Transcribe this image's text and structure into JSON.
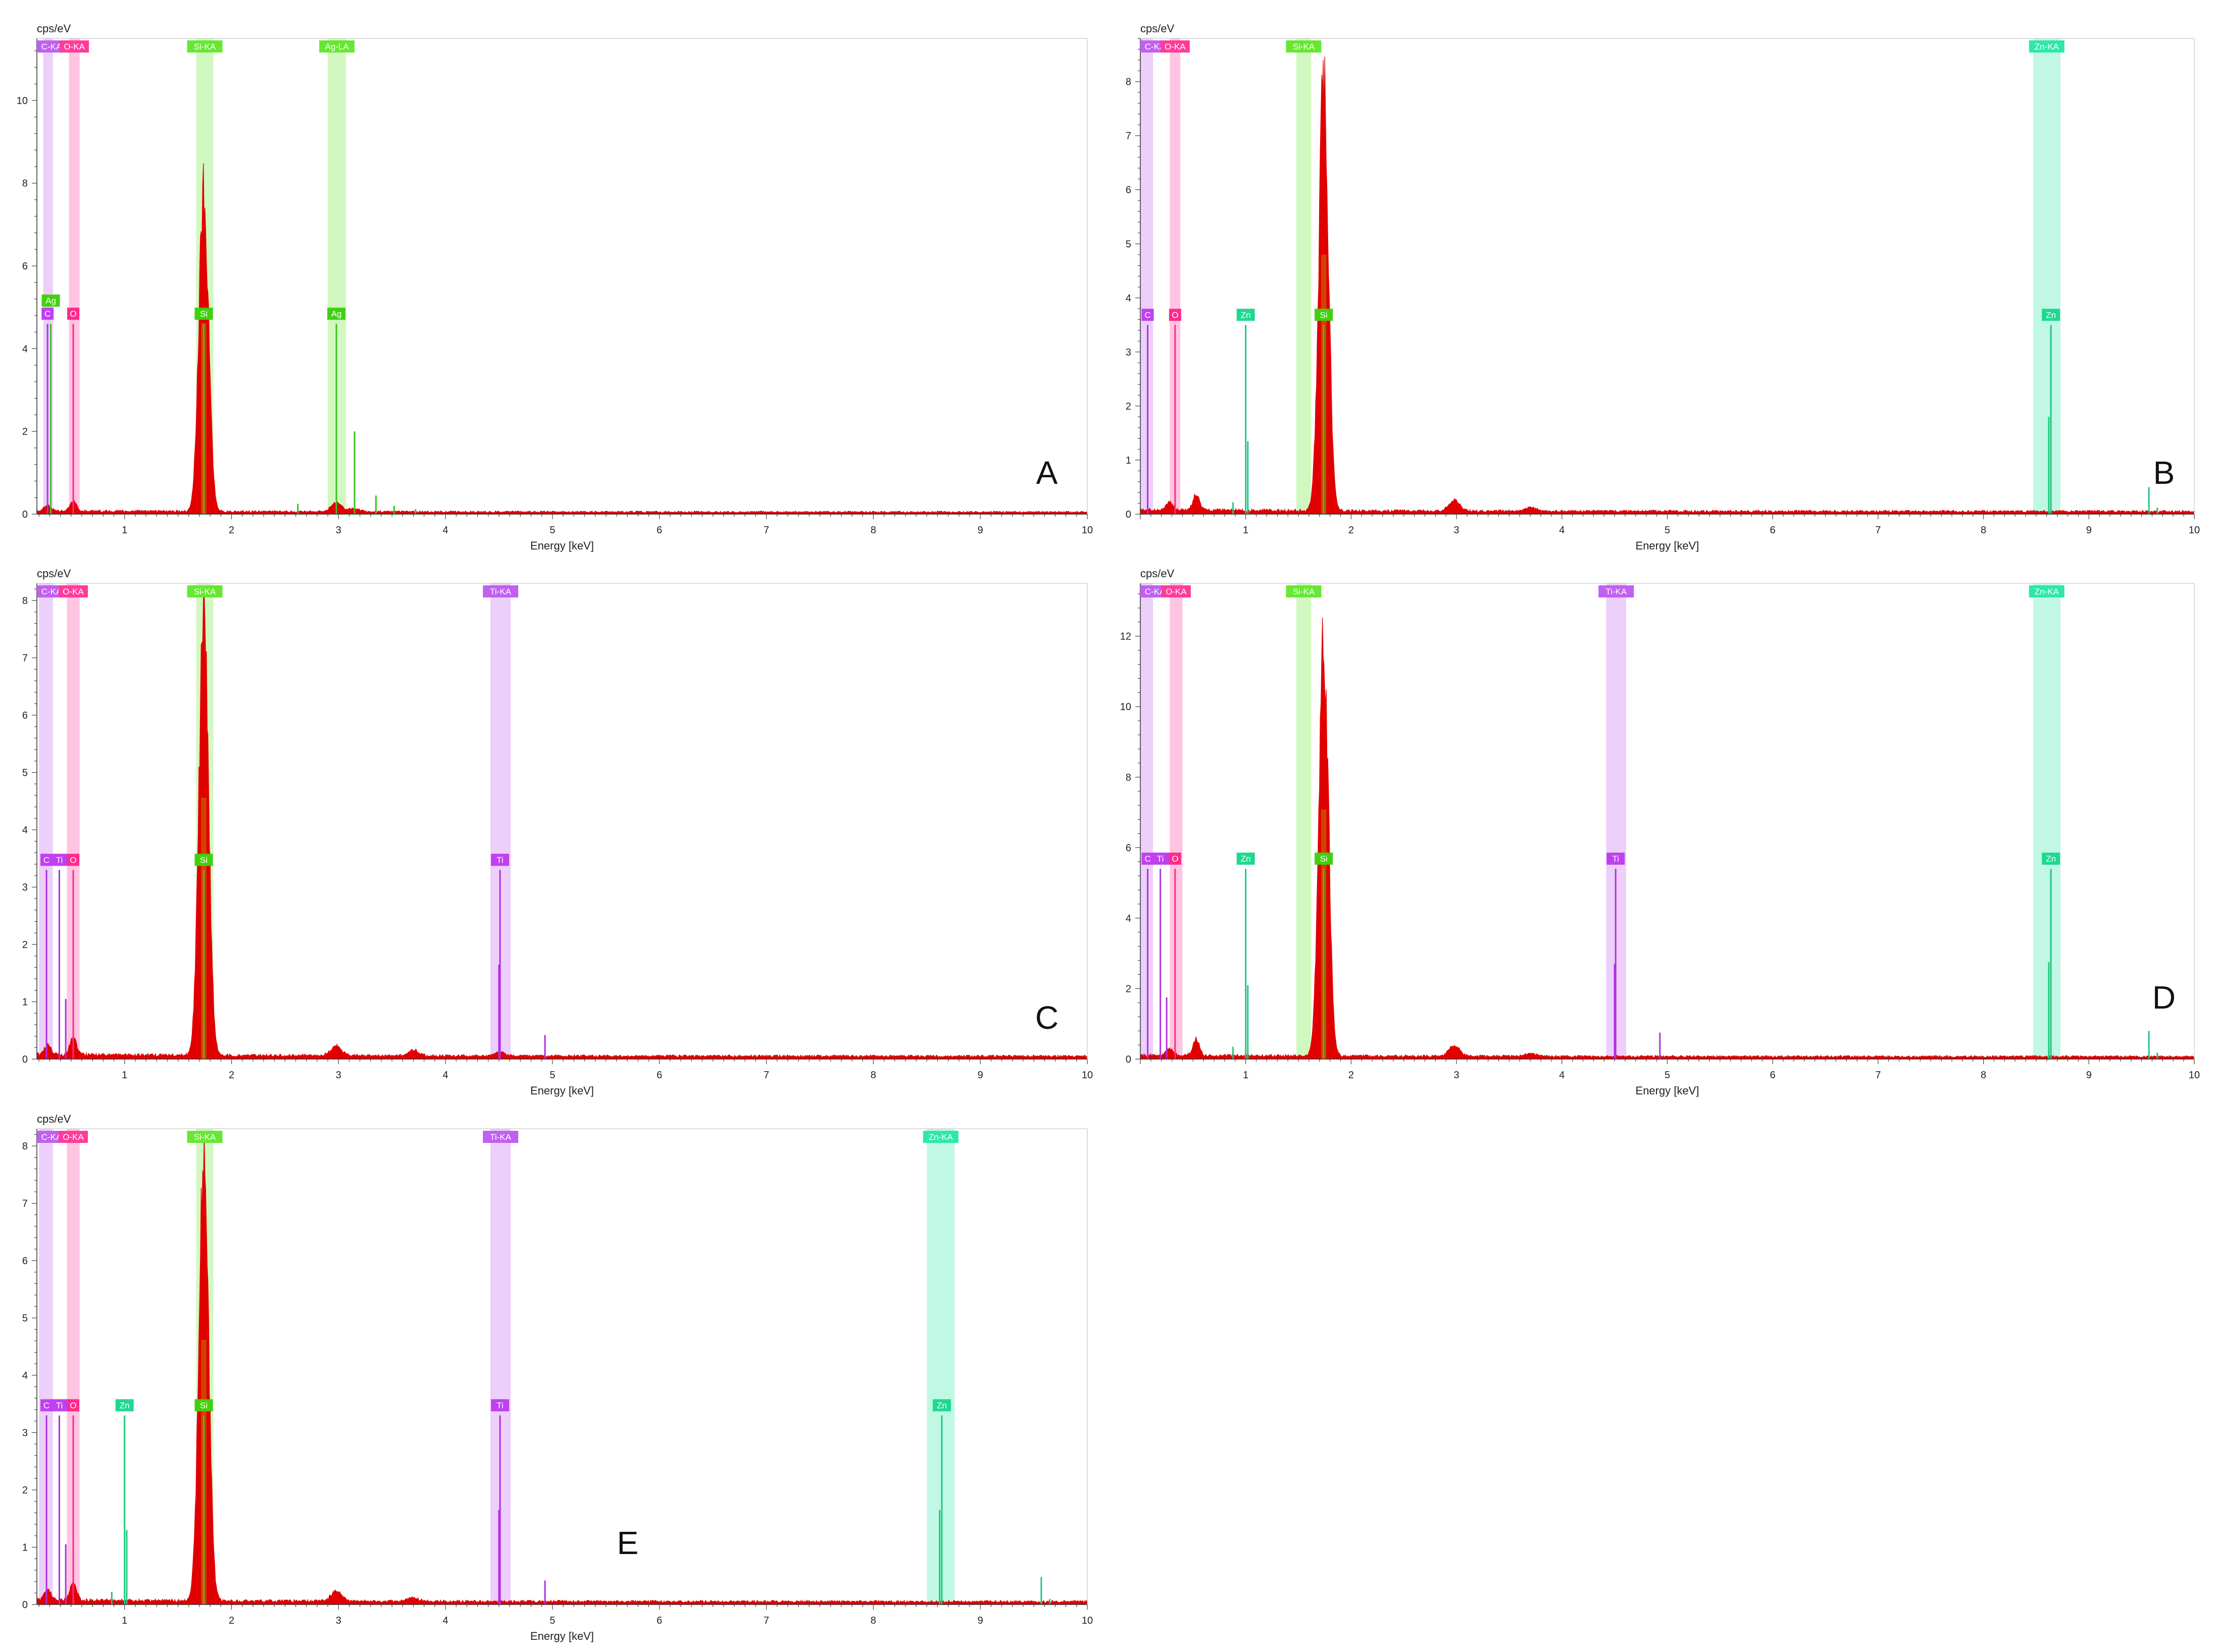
{
  "chart_data": [
    {
      "type": "area",
      "panel_label": "A",
      "ylabel": "cps/eV",
      "xlabel": "Energy [keV]",
      "xlim": [
        0.18,
        10.0
      ],
      "ylim": [
        0,
        11.5
      ],
      "x_ticks": [
        1,
        2,
        3,
        4,
        5,
        6,
        7,
        8,
        9,
        10
      ],
      "y_ticks": [
        0,
        2,
        4,
        6,
        8,
        10
      ],
      "spectrum": {
        "name": "spectrum",
        "color": "#e00000",
        "baseline": 0.05,
        "peaks": [
          {
            "x": 0.28,
            "height": 0.15,
            "sigma": 0.03
          },
          {
            "x": 0.52,
            "height": 0.25,
            "sigma": 0.03
          },
          {
            "x": 1.74,
            "height": 7.7,
            "sigma": 0.045
          },
          {
            "x": 2.98,
            "height": 0.22,
            "sigma": 0.05
          },
          {
            "x": 3.15,
            "height": 0.08,
            "sigma": 0.05
          }
        ]
      },
      "element_bands": [
        {
          "label": "C-KA",
          "x0": 0.24,
          "x1": 0.33,
          "color": "#c060f0"
        },
        {
          "label": "O-KA",
          "x0": 0.48,
          "x1": 0.58,
          "color": "#ff3c9a"
        },
        {
          "label": "Si-KA",
          "x0": 1.67,
          "x1": 1.83,
          "color": "#66e833"
        },
        {
          "label": "Ag-LA",
          "x0": 2.9,
          "x1": 3.07,
          "color": "#66e833"
        }
      ],
      "element_markers": [
        {
          "label": "C",
          "x": 0.28,
          "color": "#c040f0"
        },
        {
          "label": "Ag",
          "x": 0.31,
          "color": "#40d010",
          "raised": true
        },
        {
          "label": "O",
          "x": 0.52,
          "color": "#ff2a8a"
        },
        {
          "label": "Si",
          "x": 1.74,
          "color": "#40d010"
        },
        {
          "label": "Ag",
          "x": 2.98,
          "color": "#40d010"
        }
      ],
      "marker_lines": [
        {
          "x": 0.28,
          "y": 4.6,
          "color": "#b030e0"
        },
        {
          "x": 0.31,
          "y": 4.6,
          "color": "#40c020"
        },
        {
          "x": 0.52,
          "y": 4.6,
          "color": "#ff2a8a"
        },
        {
          "x": 1.74,
          "y": 4.6,
          "color": "#40c020"
        },
        {
          "x": 2.98,
          "y": 4.6,
          "color": "#40c020"
        },
        {
          "x": 3.15,
          "y": 2.0,
          "color": "#40c020"
        },
        {
          "x": 3.35,
          "y": 0.45,
          "color": "#40c020"
        },
        {
          "x": 2.62,
          "y": 0.25,
          "color": "#40c020"
        },
        {
          "x": 3.52,
          "y": 0.2,
          "color": "#40c020"
        },
        {
          "x": 3.72,
          "y": 0.12,
          "color": "#40c020"
        }
      ]
    },
    {
      "type": "area",
      "panel_label": "B",
      "ylabel": "cps/eV",
      "xlabel": "Energy [keV]",
      "xlim": [
        0.0,
        10.0
      ],
      "ylim": [
        0,
        8.8
      ],
      "x_ticks": [
        1,
        2,
        3,
        4,
        5,
        6,
        7,
        8,
        9,
        10
      ],
      "y_ticks": [
        0,
        1,
        2,
        3,
        4,
        5,
        6,
        7,
        8
      ],
      "spectrum": {
        "name": "spectrum",
        "color": "#e00000",
        "baseline": 0.05,
        "peaks": [
          {
            "x": 0.28,
            "height": 0.15,
            "sigma": 0.03
          },
          {
            "x": 0.53,
            "height": 0.28,
            "sigma": 0.03
          },
          {
            "x": 1.74,
            "height": 8.0,
            "sigma": 0.045
          },
          {
            "x": 2.98,
            "height": 0.2,
            "sigma": 0.05
          },
          {
            "x": 3.7,
            "height": 0.07,
            "sigma": 0.05
          }
        ]
      },
      "element_bands": [
        {
          "label": "C-KA",
          "x0": 0.0,
          "x1": 0.12,
          "color": "#c060f0"
        },
        {
          "label": "O-KA",
          "x0": 0.28,
          "x1": 0.38,
          "color": "#ff3c9a"
        },
        {
          "label": "Si-KA",
          "x0": 1.48,
          "x1": 1.62,
          "color": "#66e833"
        },
        {
          "label": "Zn-KA",
          "x0": 8.47,
          "x1": 8.73,
          "color": "#2ee8a8"
        }
      ],
      "element_markers": [
        {
          "label": "C",
          "x": 0.07,
          "color": "#c040f0"
        },
        {
          "label": "O",
          "x": 0.33,
          "color": "#ff2a8a"
        },
        {
          "label": "Zn",
          "x": 1.0,
          "color": "#20d890"
        },
        {
          "label": "Si",
          "x": 1.74,
          "color": "#40d010"
        },
        {
          "label": "Zn",
          "x": 8.64,
          "color": "#20d890"
        }
      ],
      "marker_lines": [
        {
          "x": 0.07,
          "y": 3.5,
          "color": "#b030e0"
        },
        {
          "x": 0.33,
          "y": 3.5,
          "color": "#ff2a8a"
        },
        {
          "x": 1.0,
          "y": 3.5,
          "color": "#20c880"
        },
        {
          "x": 1.02,
          "y": 1.35,
          "color": "#20c880"
        },
        {
          "x": 0.88,
          "y": 0.22,
          "color": "#20c880"
        },
        {
          "x": 1.74,
          "y": 3.5,
          "color": "#40c020"
        },
        {
          "x": 8.64,
          "y": 3.5,
          "color": "#20c880"
        },
        {
          "x": 8.62,
          "y": 1.8,
          "color": "#20c880"
        },
        {
          "x": 9.57,
          "y": 0.5,
          "color": "#20c880"
        },
        {
          "x": 9.65,
          "y": 0.12,
          "color": "#20c880"
        }
      ]
    },
    {
      "type": "area",
      "panel_label": "C",
      "ylabel": "cps/eV",
      "xlabel": "Energy [keV]",
      "xlim": [
        0.18,
        10.0
      ],
      "ylim": [
        0,
        8.3
      ],
      "x_ticks": [
        1,
        2,
        3,
        4,
        5,
        6,
        7,
        8,
        9,
        10
      ],
      "y_ticks": [
        0,
        1,
        2,
        3,
        4,
        5,
        6,
        7,
        8
      ],
      "spectrum": {
        "name": "spectrum",
        "color": "#e00000",
        "baseline": 0.05,
        "peaks": [
          {
            "x": 0.28,
            "height": 0.18,
            "sigma": 0.03
          },
          {
            "x": 0.52,
            "height": 0.3,
            "sigma": 0.03
          },
          {
            "x": 1.74,
            "height": 7.6,
            "sigma": 0.045
          },
          {
            "x": 2.98,
            "height": 0.17,
            "sigma": 0.05
          },
          {
            "x": 3.7,
            "height": 0.1,
            "sigma": 0.05
          },
          {
            "x": 4.51,
            "height": 0.08,
            "sigma": 0.04
          }
        ]
      },
      "element_bands": [
        {
          "label": "C-KA",
          "x0": 0.2,
          "x1": 0.33,
          "color": "#c060f0"
        },
        {
          "label": "O-KA",
          "x0": 0.46,
          "x1": 0.58,
          "color": "#ff3c9a"
        },
        {
          "label": "Si-KA",
          "x0": 1.67,
          "x1": 1.83,
          "color": "#66e833"
        },
        {
          "label": "Ti-KA",
          "x0": 4.42,
          "x1": 4.61,
          "color": "#c060f0"
        }
      ],
      "element_markers": [
        {
          "label": "C",
          "x": 0.27,
          "color": "#c040f0"
        },
        {
          "label": "Ti",
          "x": 0.39,
          "color": "#c040f0"
        },
        {
          "label": "O",
          "x": 0.52,
          "color": "#ff2a8a"
        },
        {
          "label": "Si",
          "x": 1.74,
          "color": "#40d010"
        },
        {
          "label": "Ti",
          "x": 4.51,
          "color": "#c040f0"
        }
      ],
      "marker_lines": [
        {
          "x": 0.27,
          "y": 3.3,
          "color": "#b030e0"
        },
        {
          "x": 0.39,
          "y": 3.3,
          "color": "#b030e0"
        },
        {
          "x": 0.45,
          "y": 1.05,
          "color": "#b030e0"
        },
        {
          "x": 0.52,
          "y": 3.3,
          "color": "#ff2a8a"
        },
        {
          "x": 1.74,
          "y": 3.3,
          "color": "#40c020"
        },
        {
          "x": 4.51,
          "y": 3.3,
          "color": "#b030e0"
        },
        {
          "x": 4.5,
          "y": 1.65,
          "color": "#b030e0"
        },
        {
          "x": 4.93,
          "y": 0.42,
          "color": "#b030e0"
        }
      ]
    },
    {
      "type": "area",
      "panel_label": "D",
      "ylabel": "cps/eV",
      "xlabel": "Energy [keV]",
      "xlim": [
        0.0,
        10.0
      ],
      "ylim": [
        0,
        13.5
      ],
      "x_ticks": [
        1,
        2,
        3,
        4,
        5,
        6,
        7,
        8,
        9,
        10
      ],
      "y_ticks": [
        0,
        2,
        4,
        6,
        8,
        10,
        12
      ],
      "spectrum": {
        "name": "spectrum",
        "color": "#e00000",
        "baseline": 0.07,
        "peaks": [
          {
            "x": 0.28,
            "height": 0.2,
            "sigma": 0.03
          },
          {
            "x": 0.53,
            "height": 0.45,
            "sigma": 0.03
          },
          {
            "x": 1.74,
            "height": 11.8,
            "sigma": 0.045
          },
          {
            "x": 2.98,
            "height": 0.3,
            "sigma": 0.05
          },
          {
            "x": 3.7,
            "height": 0.08,
            "sigma": 0.05
          }
        ]
      },
      "element_bands": [
        {
          "label": "C-KA",
          "x0": 0.0,
          "x1": 0.12,
          "color": "#c060f0"
        },
        {
          "label": "O-KA",
          "x0": 0.28,
          "x1": 0.4,
          "color": "#ff3c9a"
        },
        {
          "label": "Si-KA",
          "x0": 1.48,
          "x1": 1.62,
          "color": "#66e833"
        },
        {
          "label": "Ti-KA",
          "x0": 4.42,
          "x1": 4.61,
          "color": "#c060f0"
        },
        {
          "label": "Zn-KA",
          "x0": 8.47,
          "x1": 8.73,
          "color": "#2ee8a8"
        }
      ],
      "element_markers": [
        {
          "label": "C",
          "x": 0.07,
          "color": "#c040f0"
        },
        {
          "label": "Ti",
          "x": 0.19,
          "color": "#c040f0"
        },
        {
          "label": "O",
          "x": 0.33,
          "color": "#ff2a8a"
        },
        {
          "label": "Zn",
          "x": 1.0,
          "color": "#20d890"
        },
        {
          "label": "Si",
          "x": 1.74,
          "color": "#40d010"
        },
        {
          "label": "Ti",
          "x": 4.51,
          "color": "#c040f0"
        },
        {
          "label": "Zn",
          "x": 8.64,
          "color": "#20d890"
        }
      ],
      "marker_lines": [
        {
          "x": 0.07,
          "y": 5.4,
          "color": "#b030e0"
        },
        {
          "x": 0.19,
          "y": 5.4,
          "color": "#b030e0"
        },
        {
          "x": 0.25,
          "y": 1.75,
          "color": "#b030e0"
        },
        {
          "x": 0.33,
          "y": 5.4,
          "color": "#ff2a8a"
        },
        {
          "x": 1.0,
          "y": 5.4,
          "color": "#20c880"
        },
        {
          "x": 1.02,
          "y": 2.1,
          "color": "#20c880"
        },
        {
          "x": 0.88,
          "y": 0.35,
          "color": "#20c880"
        },
        {
          "x": 1.74,
          "y": 5.4,
          "color": "#40c020"
        },
        {
          "x": 4.51,
          "y": 5.4,
          "color": "#b030e0"
        },
        {
          "x": 4.5,
          "y": 2.7,
          "color": "#b030e0"
        },
        {
          "x": 4.93,
          "y": 0.75,
          "color": "#b030e0"
        },
        {
          "x": 8.64,
          "y": 5.4,
          "color": "#20c880"
        },
        {
          "x": 8.62,
          "y": 2.75,
          "color": "#20c880"
        },
        {
          "x": 9.57,
          "y": 0.8,
          "color": "#20c880"
        },
        {
          "x": 9.65,
          "y": 0.18,
          "color": "#20c880"
        }
      ]
    },
    {
      "type": "area",
      "panel_label": "E",
      "ylabel": "cps/eV",
      "xlabel": "Energy [keV]",
      "xlim": [
        0.18,
        10.0
      ],
      "ylim": [
        0,
        8.3
      ],
      "x_ticks": [
        1,
        2,
        3,
        4,
        5,
        6,
        7,
        8,
        9,
        10
      ],
      "y_ticks": [
        0,
        1,
        2,
        3,
        4,
        5,
        6,
        7,
        8
      ],
      "spectrum": {
        "name": "spectrum",
        "color": "#e00000",
        "baseline": 0.05,
        "peaks": [
          {
            "x": 0.28,
            "height": 0.18,
            "sigma": 0.03
          },
          {
            "x": 0.52,
            "height": 0.3,
            "sigma": 0.03
          },
          {
            "x": 1.74,
            "height": 7.7,
            "sigma": 0.045
          },
          {
            "x": 2.98,
            "height": 0.17,
            "sigma": 0.05
          },
          {
            "x": 3.7,
            "height": 0.06,
            "sigma": 0.05
          }
        ]
      },
      "element_bands": [
        {
          "label": "C-KA",
          "x0": 0.2,
          "x1": 0.33,
          "color": "#c060f0"
        },
        {
          "label": "O-KA",
          "x0": 0.46,
          "x1": 0.58,
          "color": "#ff3c9a"
        },
        {
          "label": "Si-KA",
          "x0": 1.67,
          "x1": 1.83,
          "color": "#66e833"
        },
        {
          "label": "Ti-KA",
          "x0": 4.42,
          "x1": 4.61,
          "color": "#c060f0"
        },
        {
          "label": "Zn-KA",
          "x0": 8.5,
          "x1": 8.76,
          "color": "#2ee8a8"
        }
      ],
      "element_markers": [
        {
          "label": "C",
          "x": 0.27,
          "color": "#c040f0"
        },
        {
          "label": "Ti",
          "x": 0.39,
          "color": "#c040f0"
        },
        {
          "label": "O",
          "x": 0.52,
          "color": "#ff2a8a"
        },
        {
          "label": "Zn",
          "x": 1.0,
          "color": "#20d890"
        },
        {
          "label": "Si",
          "x": 1.74,
          "color": "#40d010"
        },
        {
          "label": "Ti",
          "x": 4.51,
          "color": "#c040f0"
        },
        {
          "label": "Zn",
          "x": 8.64,
          "color": "#20d890"
        }
      ],
      "marker_lines": [
        {
          "x": 0.27,
          "y": 3.3,
          "color": "#b030e0"
        },
        {
          "x": 0.39,
          "y": 3.3,
          "color": "#b030e0"
        },
        {
          "x": 0.45,
          "y": 1.05,
          "color": "#b030e0"
        },
        {
          "x": 0.52,
          "y": 3.3,
          "color": "#ff2a8a"
        },
        {
          "x": 1.0,
          "y": 3.3,
          "color": "#20c880"
        },
        {
          "x": 1.02,
          "y": 1.3,
          "color": "#20c880"
        },
        {
          "x": 0.88,
          "y": 0.22,
          "color": "#20c880"
        },
        {
          "x": 1.74,
          "y": 3.3,
          "color": "#40c020"
        },
        {
          "x": 4.51,
          "y": 3.3,
          "color": "#b030e0"
        },
        {
          "x": 4.5,
          "y": 1.65,
          "color": "#b030e0"
        },
        {
          "x": 4.93,
          "y": 0.42,
          "color": "#b030e0"
        },
        {
          "x": 8.64,
          "y": 3.3,
          "color": "#20c880"
        },
        {
          "x": 8.62,
          "y": 1.65,
          "color": "#20c880"
        },
        {
          "x": 9.57,
          "y": 0.48,
          "color": "#20c880"
        },
        {
          "x": 9.65,
          "y": 0.1,
          "color": "#20c880"
        }
      ]
    }
  ]
}
